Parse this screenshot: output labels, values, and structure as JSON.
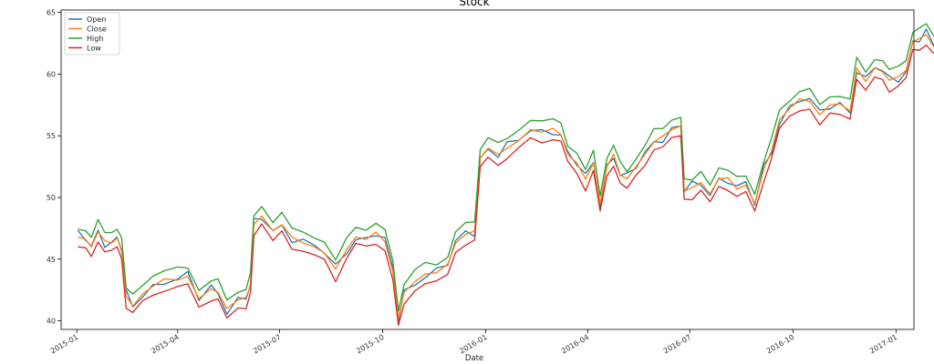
{
  "chart_data": {
    "type": "line",
    "title": "Stock",
    "xlabel": "Date",
    "ylabel": "",
    "ylim": [
      39.3,
      65.2
    ],
    "xlim": [
      "2014-12-18",
      "2017-01-17"
    ],
    "x_ticks": [
      "2015-01",
      "2015-04",
      "2015-07",
      "2015-10",
      "2016-01",
      "2016-04",
      "2016-07",
      "2016-10",
      "2017-01"
    ],
    "y_ticks": [
      40,
      45,
      50,
      55,
      60,
      65
    ],
    "legend": "top-left",
    "grid": false,
    "series": [
      {
        "name": "Open",
        "color": "#1f77b4"
      },
      {
        "name": "Close",
        "color": "#ff7f0e"
      },
      {
        "name": "High",
        "color": "#2ca02c"
      },
      {
        "name": "Low",
        "color": "#d62728"
      }
    ],
    "close_points": [
      [
        "2015-01-02",
        46.8
      ],
      [
        "2015-01-09",
        46.6
      ],
      [
        "2015-01-14",
        46.0
      ],
      [
        "2015-01-20",
        47.2
      ],
      [
        "2015-01-26",
        46.5
      ],
      [
        "2015-02-01",
        46.3
      ],
      [
        "2015-02-06",
        46.7
      ],
      [
        "2015-02-10",
        45.8
      ],
      [
        "2015-02-14",
        42.0
      ],
      [
        "2015-02-20",
        41.2
      ],
      [
        "2015-03-01",
        42.2
      ],
      [
        "2015-03-10",
        42.8
      ],
      [
        "2015-03-20",
        43.4
      ],
      [
        "2015-04-01",
        43.3
      ],
      [
        "2015-04-10",
        43.6
      ],
      [
        "2015-04-20",
        41.8
      ],
      [
        "2015-05-01",
        42.6
      ],
      [
        "2015-05-07",
        42.3
      ],
      [
        "2015-05-15",
        41.0
      ],
      [
        "2015-05-25",
        41.7
      ],
      [
        "2015-06-01",
        41.9
      ],
      [
        "2015-06-05",
        42.8
      ],
      [
        "2015-06-08",
        47.8
      ],
      [
        "2015-06-15",
        48.5
      ],
      [
        "2015-06-25",
        47.3
      ],
      [
        "2015-07-03",
        47.8
      ],
      [
        "2015-07-12",
        46.8
      ],
      [
        "2015-07-22",
        46.3
      ],
      [
        "2015-08-01",
        46.0
      ],
      [
        "2015-08-10",
        45.5
      ],
      [
        "2015-08-20",
        44.2
      ],
      [
        "2015-08-30",
        45.8
      ],
      [
        "2015-09-07",
        46.8
      ],
      [
        "2015-09-16",
        46.6
      ],
      [
        "2015-09-25",
        47.2
      ],
      [
        "2015-10-03",
        46.4
      ],
      [
        "2015-10-10",
        44.0
      ],
      [
        "2015-10-15",
        40.2
      ],
      [
        "2015-10-20",
        42.3
      ],
      [
        "2015-10-30",
        43.2
      ],
      [
        "2015-11-08",
        43.8
      ],
      [
        "2015-11-18",
        43.9
      ],
      [
        "2015-11-28",
        44.6
      ],
      [
        "2015-12-05",
        46.3
      ],
      [
        "2015-12-14",
        47.0
      ],
      [
        "2015-12-22",
        47.3
      ],
      [
        "2015-12-27",
        53.2
      ],
      [
        "2016-01-03",
        54.0
      ],
      [
        "2016-01-12",
        53.5
      ],
      [
        "2016-01-20",
        54.0
      ],
      [
        "2016-01-30",
        54.6
      ],
      [
        "2016-02-10",
        55.5
      ],
      [
        "2016-02-20",
        55.3
      ],
      [
        "2016-03-01",
        55.6
      ],
      [
        "2016-03-08",
        55.1
      ],
      [
        "2016-03-14",
        53.5
      ],
      [
        "2016-03-22",
        52.8
      ],
      [
        "2016-03-30",
        51.5
      ],
      [
        "2016-04-06",
        52.8
      ],
      [
        "2016-04-12",
        49.5
      ],
      [
        "2016-04-18",
        52.5
      ],
      [
        "2016-04-24",
        53.5
      ],
      [
        "2016-04-30",
        51.8
      ],
      [
        "2016-05-06",
        51.5
      ],
      [
        "2016-05-14",
        52.5
      ],
      [
        "2016-05-22",
        53.5
      ],
      [
        "2016-05-30",
        54.5
      ],
      [
        "2016-06-07",
        55.0
      ],
      [
        "2016-06-15",
        55.5
      ],
      [
        "2016-06-23",
        55.8
      ],
      [
        "2016-06-26",
        50.5
      ],
      [
        "2016-07-03",
        50.8
      ],
      [
        "2016-07-11",
        51.2
      ],
      [
        "2016-07-19",
        50.3
      ],
      [
        "2016-07-27",
        51.5
      ],
      [
        "2016-08-04",
        51.6
      ],
      [
        "2016-08-12",
        50.7
      ],
      [
        "2016-08-20",
        51.0
      ],
      [
        "2016-08-28",
        49.5
      ],
      [
        "2016-09-05",
        52.3
      ],
      [
        "2016-09-12",
        53.8
      ],
      [
        "2016-09-19",
        56.3
      ],
      [
        "2016-09-28",
        57.2
      ],
      [
        "2016-10-07",
        58.0
      ],
      [
        "2016-10-16",
        57.8
      ],
      [
        "2016-10-25",
        56.7
      ],
      [
        "2016-11-03",
        57.5
      ],
      [
        "2016-11-12",
        57.6
      ],
      [
        "2016-11-21",
        57.0
      ],
      [
        "2016-11-27",
        60.5
      ],
      [
        "2016-12-05",
        59.4
      ],
      [
        "2016-12-13",
        60.5
      ],
      [
        "2016-12-20",
        60.2
      ],
      [
        "2016-12-26",
        59.5
      ],
      [
        "2017-01-03",
        59.8
      ],
      [
        "2017-01-10",
        60.3
      ],
      [
        "2017-01-16",
        62.6
      ],
      [
        "2017-01-22",
        62.9
      ],
      [
        "2017-01-28",
        63.2
      ],
      [
        "2017-02-03",
        62.3
      ],
      [
        "2017-02-08",
        62.0
      ]
    ]
  }
}
